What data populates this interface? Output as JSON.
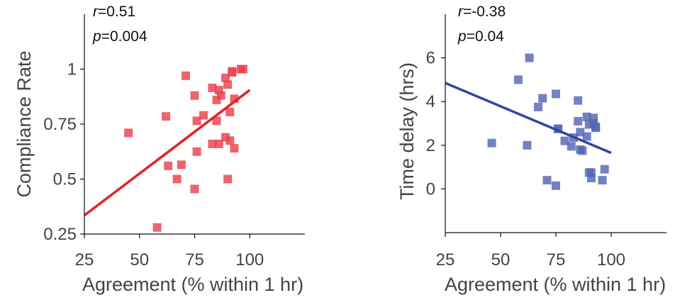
{
  "chart_data": [
    {
      "type": "scatter",
      "xlabel": "Agreement (% within 1 hr)",
      "ylabel": "Compliance Rate",
      "xlim": [
        25,
        125
      ],
      "ylim": [
        0.25,
        1.25
      ],
      "x_ticks": [
        "25",
        "50",
        "75",
        "100"
      ],
      "y_ticks": [
        "0.25",
        "0.5",
        "0.75",
        "1"
      ],
      "stats": {
        "r_label": "r",
        "r_value": "=0.51",
        "p_label": "p",
        "p_value": "=0.004"
      },
      "colors": {
        "points": "#e8424d",
        "fit": "#e02323"
      },
      "fit_line": {
        "x": [
          25,
          100
        ],
        "y": [
          0.335,
          0.905
        ]
      },
      "points": [
        {
          "x": 45,
          "y": 0.71
        },
        {
          "x": 58,
          "y": 0.28
        },
        {
          "x": 62,
          "y": 0.785
        },
        {
          "x": 63,
          "y": 0.56
        },
        {
          "x": 67,
          "y": 0.5
        },
        {
          "x": 69,
          "y": 0.565
        },
        {
          "x": 71,
          "y": 0.97
        },
        {
          "x": 75,
          "y": 0.88
        },
        {
          "x": 75,
          "y": 0.455
        },
        {
          "x": 76,
          "y": 0.765
        },
        {
          "x": 76,
          "y": 0.625
        },
        {
          "x": 79,
          "y": 0.79
        },
        {
          "x": 83,
          "y": 0.915
        },
        {
          "x": 83,
          "y": 0.66
        },
        {
          "x": 85,
          "y": 0.86
        },
        {
          "x": 85,
          "y": 0.765
        },
        {
          "x": 86,
          "y": 0.905
        },
        {
          "x": 86,
          "y": 0.66
        },
        {
          "x": 87,
          "y": 0.88
        },
        {
          "x": 89,
          "y": 0.96
        },
        {
          "x": 89,
          "y": 0.69
        },
        {
          "x": 90,
          "y": 0.93
        },
        {
          "x": 90,
          "y": 0.5
        },
        {
          "x": 91,
          "y": 0.805
        },
        {
          "x": 91,
          "y": 0.675
        },
        {
          "x": 92,
          "y": 0.985
        },
        {
          "x": 92,
          "y": 0.99
        },
        {
          "x": 93,
          "y": 0.865
        },
        {
          "x": 93,
          "y": 0.64
        },
        {
          "x": 96,
          "y": 1.0
        },
        {
          "x": 97,
          "y": 1.0
        }
      ]
    },
    {
      "type": "scatter",
      "xlabel": "Agreement (% within 1 hr)",
      "ylabel": "Time delay (hrs)",
      "xlim": [
        25,
        125
      ],
      "ylim": [
        -2,
        8
      ],
      "x_ticks": [
        "25",
        "50",
        "75",
        "100"
      ],
      "y_ticks": [
        "0",
        "2",
        "4",
        "6"
      ],
      "stats": {
        "r_label": "r",
        "r_value": "=-0.38",
        "p_label": "p",
        "p_value": "=0.04"
      },
      "colors": {
        "points": "#5566b5",
        "fit": "#2d48a0"
      },
      "fit_line": {
        "x": [
          25,
          100
        ],
        "y": [
          4.85,
          1.65
        ]
      },
      "points": [
        {
          "x": 46,
          "y": 2.1
        },
        {
          "x": 58,
          "y": 5.0
        },
        {
          "x": 62,
          "y": 2.0
        },
        {
          "x": 63,
          "y": 6.0
        },
        {
          "x": 67,
          "y": 3.75
        },
        {
          "x": 69,
          "y": 4.15
        },
        {
          "x": 71,
          "y": 0.4
        },
        {
          "x": 75,
          "y": 4.35
        },
        {
          "x": 75,
          "y": 0.15
        },
        {
          "x": 76,
          "y": 2.75
        },
        {
          "x": 76,
          "y": 2.75
        },
        {
          "x": 79,
          "y": 2.2
        },
        {
          "x": 82,
          "y": 1.95
        },
        {
          "x": 83,
          "y": 2.35
        },
        {
          "x": 85,
          "y": 4.05
        },
        {
          "x": 85,
          "y": 3.1
        },
        {
          "x": 86,
          "y": 1.8
        },
        {
          "x": 86,
          "y": 2.6
        },
        {
          "x": 87,
          "y": 1.75
        },
        {
          "x": 89,
          "y": 2.4
        },
        {
          "x": 89,
          "y": 3.3
        },
        {
          "x": 90,
          "y": 2.95
        },
        {
          "x": 90,
          "y": 0.75
        },
        {
          "x": 91,
          "y": 0.5
        },
        {
          "x": 91,
          "y": 0.75
        },
        {
          "x": 92,
          "y": 3.0
        },
        {
          "x": 92,
          "y": 3.25
        },
        {
          "x": 93,
          "y": 2.8
        },
        {
          "x": 93,
          "y": 2.85
        },
        {
          "x": 96,
          "y": 0.4
        },
        {
          "x": 97,
          "y": 0.9
        }
      ]
    }
  ]
}
